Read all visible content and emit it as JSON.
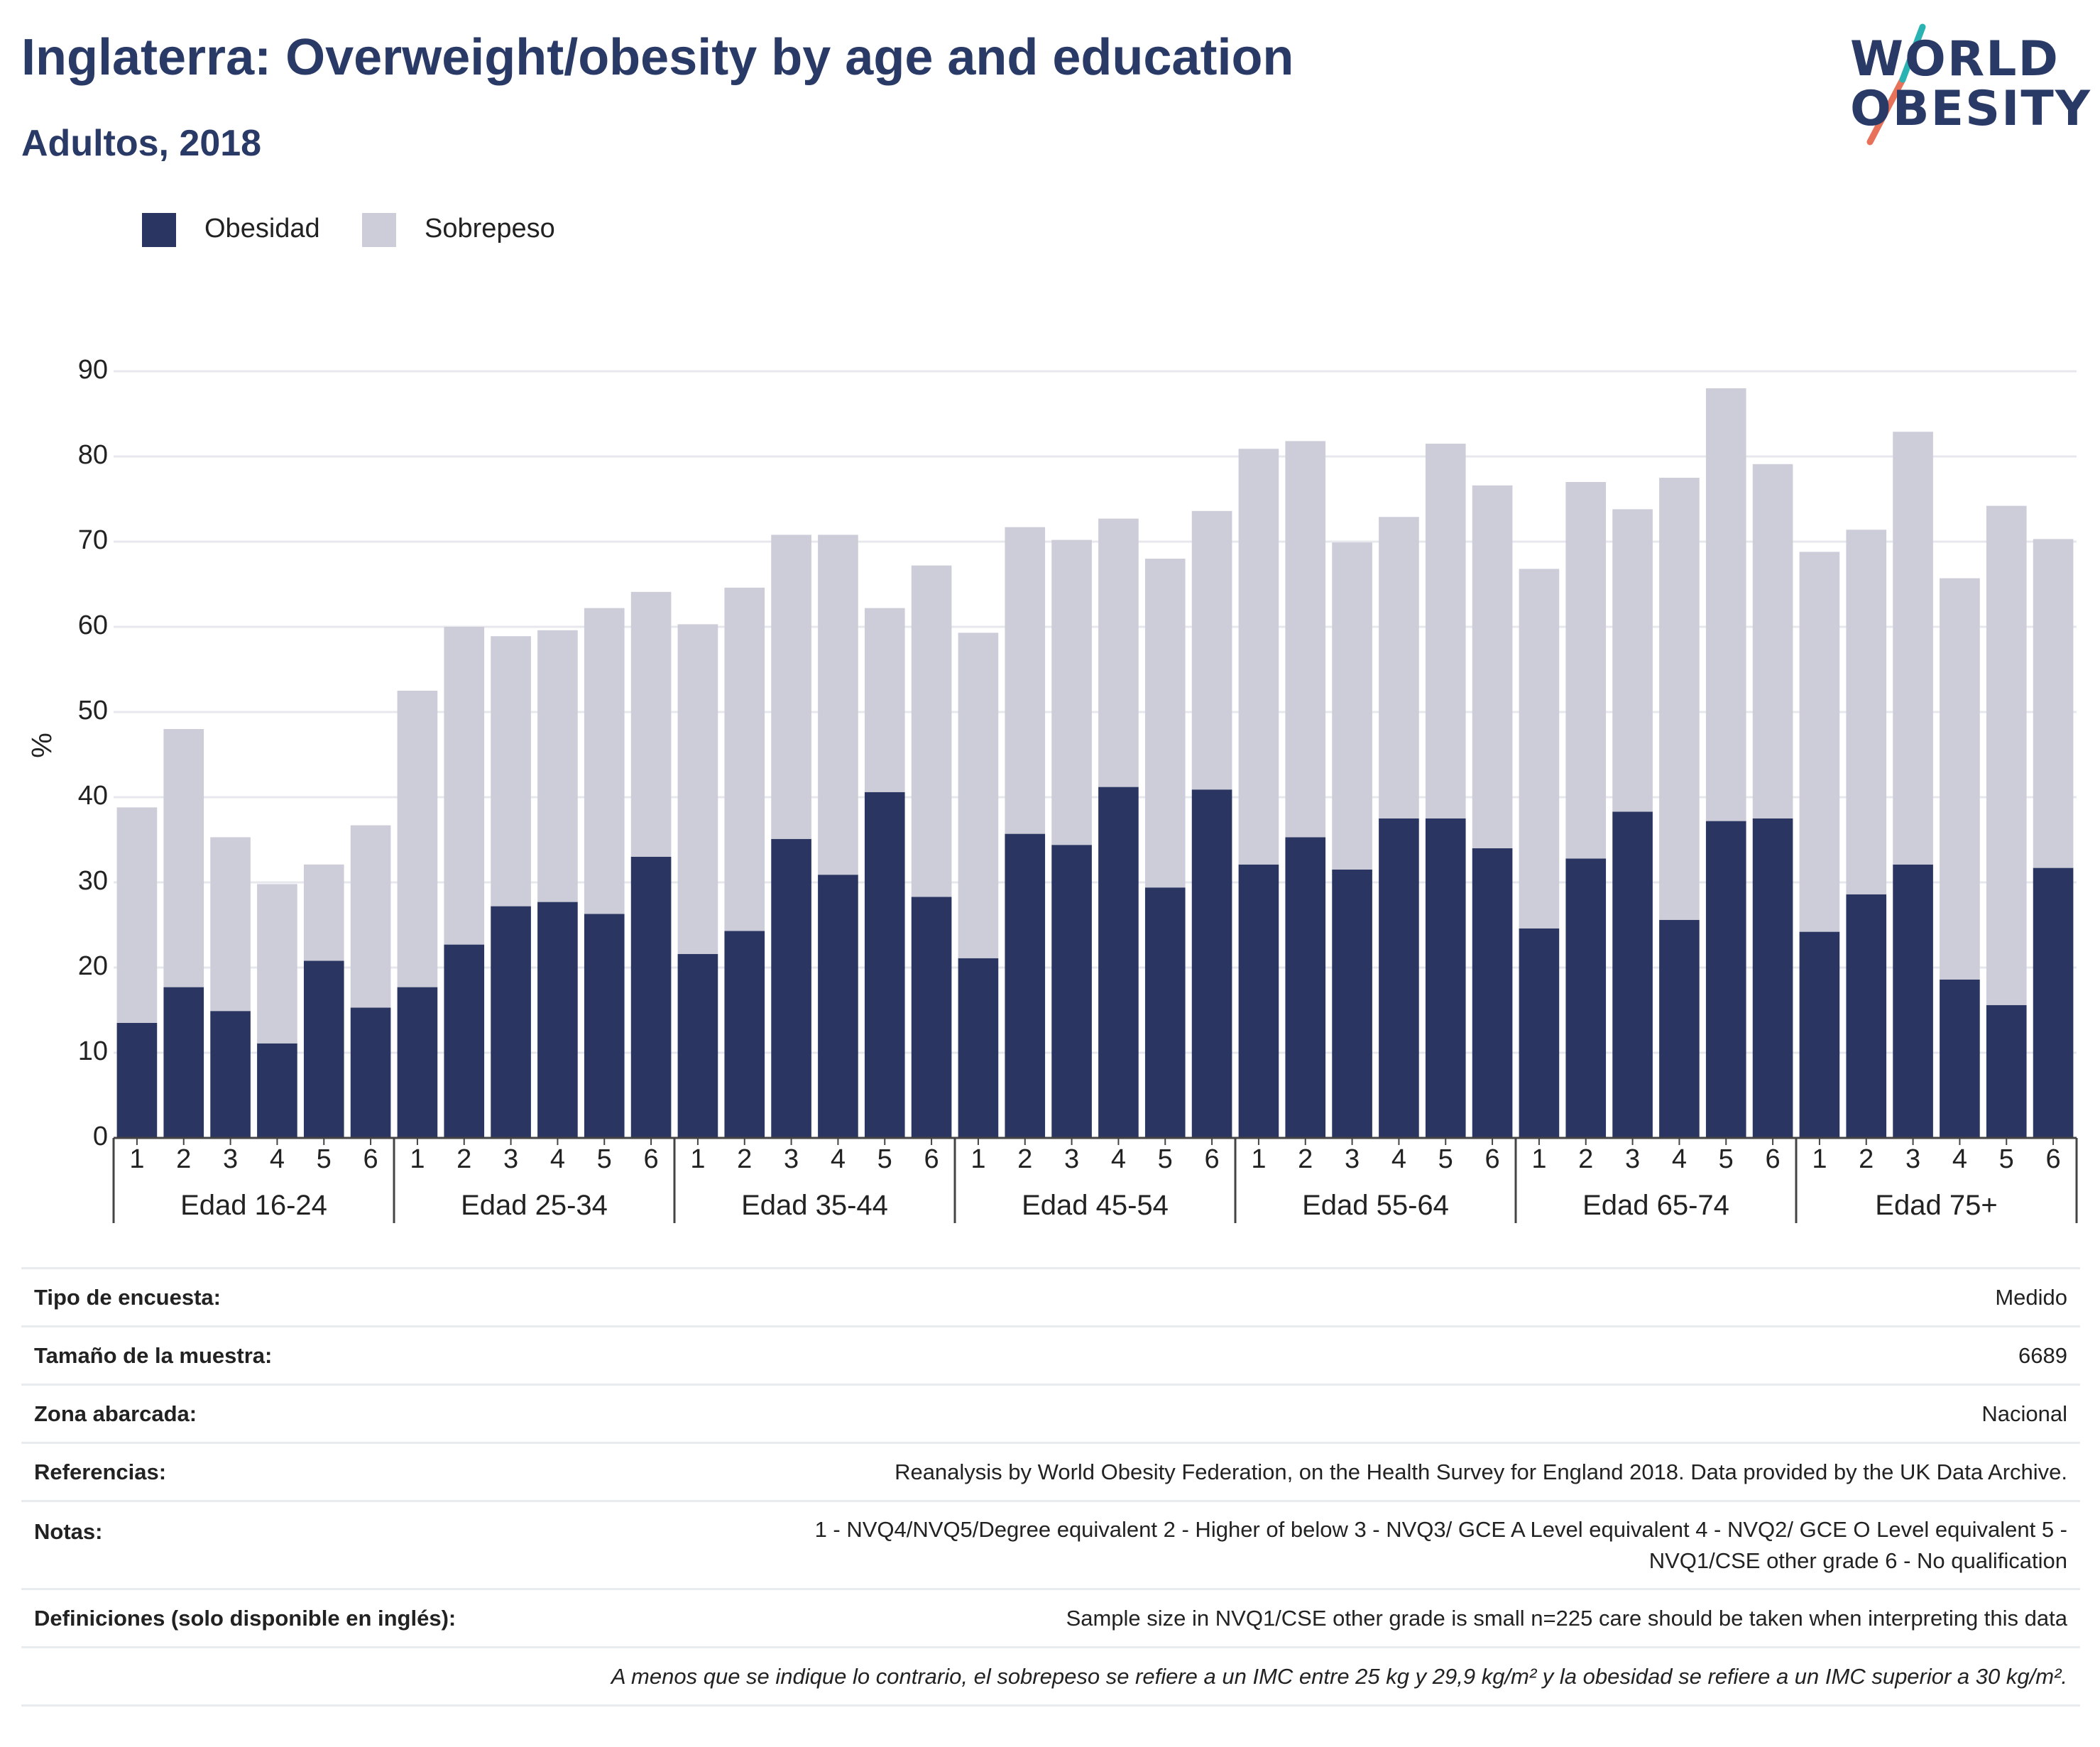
{
  "header": {
    "title": "Inglaterra: Overweight/obesity by age and education",
    "subtitle": "Adultos, 2018"
  },
  "logo": {
    "line1": "WORLD",
    "line2": "OBESITY"
  },
  "chart_data": {
    "type": "bar",
    "stacked": true,
    "ylabel": "%",
    "ylim": [
      0,
      90
    ],
    "yticks": [
      0,
      10,
      20,
      30,
      40,
      50,
      60,
      70,
      80,
      90
    ],
    "grid": true,
    "legend_position": "top-left",
    "groups": [
      "Edad 16-24",
      "Edad 25-34",
      "Edad 35-44",
      "Edad 45-54",
      "Edad 55-64",
      "Edad 65-74",
      "Edad 75+"
    ],
    "categories": [
      "1",
      "2",
      "3",
      "4",
      "5",
      "6"
    ],
    "series": [
      {
        "name": "Obesidad",
        "color": "#2b3561",
        "values": [
          [
            13.5,
            17.7,
            14.9,
            11.1,
            20.8,
            15.3
          ],
          [
            17.7,
            22.7,
            27.2,
            27.7,
            26.3,
            33.0
          ],
          [
            21.6,
            24.3,
            35.1,
            30.9,
            40.6,
            28.3
          ],
          [
            21.1,
            35.7,
            34.4,
            41.2,
            29.4,
            40.9
          ],
          [
            32.1,
            35.3,
            31.5,
            37.5,
            37.5,
            34.0
          ],
          [
            24.6,
            32.8,
            38.3,
            25.6,
            37.2,
            37.5
          ],
          [
            24.2,
            28.6,
            32.1,
            18.6,
            15.6,
            31.7
          ]
        ]
      },
      {
        "name": "Sobrepeso",
        "color": "#cccdd8",
        "values": [
          [
            25.3,
            30.3,
            20.4,
            18.7,
            11.3,
            21.4
          ],
          [
            34.8,
            37.3,
            31.7,
            31.9,
            35.9,
            31.1
          ],
          [
            38.7,
            40.3,
            35.7,
            39.9,
            21.6,
            38.9
          ],
          [
            38.2,
            36.0,
            35.8,
            31.5,
            38.6,
            32.7
          ],
          [
            48.8,
            46.5,
            38.4,
            35.4,
            44.0,
            42.6
          ],
          [
            42.2,
            44.2,
            35.5,
            51.9,
            50.8,
            41.6
          ],
          [
            44.6,
            42.8,
            50.8,
            47.1,
            58.6,
            38.6
          ]
        ]
      }
    ]
  },
  "info": [
    {
      "label": "Tipo de encuesta:",
      "value": "Medido"
    },
    {
      "label": "Tamaño de la muestra:",
      "value": "6689"
    },
    {
      "label": "Zona abarcada:",
      "value": "Nacional"
    },
    {
      "label": "Referencias:",
      "value": "Reanalysis by World Obesity Federation, on the Health Survey for England 2018. Data provided by the UK Data Archive."
    },
    {
      "label": "Notas:",
      "value_line1": "1 - NVQ4/NVQ5/Degree equivalent 2 - Higher of below 3 - NVQ3/ GCE A Level equivalent 4 - NVQ2/ GCE O Level equivalent 5 -",
      "value_line2": "NVQ1/CSE other grade 6 - No qualification"
    },
    {
      "label": "Definiciones (solo disponible en inglés):",
      "value": "Sample size in NVQ1/CSE other grade is small n=225 care should be taken when interpreting this data"
    }
  ],
  "footnote": "A menos que se indique lo contrario, el sobrepeso se refiere a un IMC entre 25 kg y 29,9 kg/m² y la obesidad se refiere a un IMC superior a 30 kg/m²."
}
